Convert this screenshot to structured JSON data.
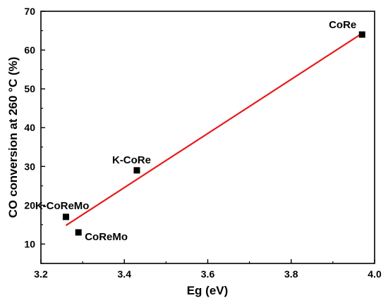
{
  "chart_data": {
    "type": "scatter",
    "title": "",
    "xlabel": "Eg (eV)",
    "ylabel": "CO conversion at 260 °C  (%)",
    "xlim": [
      3.2,
      4.0
    ],
    "ylim": [
      5,
      70
    ],
    "x_ticks": [
      "3.2",
      "3.4",
      "3.6",
      "3.8",
      "4.0"
    ],
    "y_ticks": [
      "10",
      "20",
      "30",
      "40",
      "50",
      "60",
      "70"
    ],
    "points": [
      {
        "label": "CoRe",
        "x": 3.97,
        "y": 64
      },
      {
        "label": "K-CoRe",
        "x": 3.43,
        "y": 29
      },
      {
        "label": "K-CoReMo",
        "x": 3.26,
        "y": 17
      },
      {
        "label": "CoReMo",
        "x": 3.29,
        "y": 13
      }
    ],
    "fit_line": {
      "x": [
        3.26,
        3.97
      ],
      "y": [
        14.8,
        64.3
      ],
      "color": "#e8191c"
    },
    "marker_color": "#000000",
    "grid": false,
    "legend": "none"
  }
}
